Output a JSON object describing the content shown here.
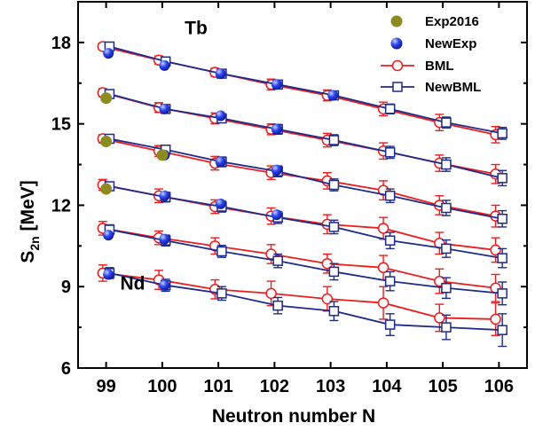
{
  "chart_data": {
    "type": "line",
    "title": "",
    "xlabel": "Neutron number N",
    "ylabel_main": "S",
    "ylabel_sub": "2n",
    "ylabel_unit": " [MeV]",
    "x": [
      99,
      100,
      101,
      102,
      103,
      104,
      105,
      106
    ],
    "xlim": [
      98.5,
      106.5
    ],
    "ylim": [
      6,
      19.5
    ],
    "yticks": [
      6,
      9,
      12,
      15,
      18
    ],
    "legend_position": "top-right",
    "annotations": [
      {
        "text": "Tb",
        "x": 100.4,
        "y": 18.3
      },
      {
        "text": "Nd",
        "x": 99.25,
        "y": 8.9
      }
    ],
    "series": [
      {
        "name": "Exp2016",
        "color": "#8b8b22",
        "marker": "circle-filled",
        "points": [
          [
            99,
            15.95
          ],
          [
            99,
            14.35
          ],
          [
            99,
            12.6
          ],
          [
            100,
            13.85
          ]
        ]
      },
      {
        "name": "NewExp",
        "color": "#1a2fe0",
        "marker": "sphere",
        "points": [
          [
            99,
            17.6
          ],
          [
            100,
            17.15
          ],
          [
            101,
            16.85
          ],
          [
            102,
            16.45
          ],
          [
            103,
            16.05
          ],
          [
            100,
            15.55
          ],
          [
            101,
            15.3
          ],
          [
            102,
            14.8
          ],
          [
            100,
            13.85
          ],
          [
            101,
            13.6
          ],
          [
            102,
            13.3
          ],
          [
            100,
            12.35
          ],
          [
            101,
            12.05
          ],
          [
            102,
            11.65
          ],
          [
            99,
            10.9
          ],
          [
            100,
            10.75
          ],
          [
            99,
            9.45
          ],
          [
            100,
            9.05
          ]
        ]
      },
      {
        "name": "BML",
        "color": "#ee1c1c",
        "marker": "circle-open",
        "curves": [
          [
            17.85,
            17.35,
            16.9,
            16.45,
            16.05,
            15.55,
            15.05,
            14.6
          ],
          [
            16.15,
            15.6,
            15.2,
            14.8,
            14.4,
            14.0,
            13.55,
            13.15
          ],
          [
            14.45,
            14.0,
            13.55,
            13.2,
            12.9,
            12.55,
            12.0,
            11.6
          ],
          [
            12.75,
            12.35,
            11.95,
            11.6,
            11.3,
            11.15,
            10.6,
            10.35
          ],
          [
            11.15,
            10.8,
            10.5,
            10.2,
            9.85,
            9.7,
            9.2,
            8.95
          ],
          [
            9.5,
            9.25,
            8.9,
            8.75,
            8.55,
            8.4,
            7.85,
            7.8
          ]
        ],
        "errors": [
          [
            0.12,
            0.15,
            0.15,
            0.2,
            0.2,
            0.25,
            0.3,
            0.3
          ],
          [
            0.15,
            0.18,
            0.2,
            0.2,
            0.25,
            0.3,
            0.3,
            0.35
          ],
          [
            0.15,
            0.2,
            0.25,
            0.25,
            0.3,
            0.35,
            0.35,
            0.4
          ],
          [
            0.2,
            0.25,
            0.25,
            0.3,
            0.35,
            0.4,
            0.4,
            0.45
          ],
          [
            0.25,
            0.25,
            0.3,
            0.35,
            0.35,
            0.45,
            0.45,
            0.5
          ],
          [
            0.3,
            0.35,
            0.35,
            0.45,
            0.45,
            0.6,
            0.5,
            0.6
          ]
        ]
      },
      {
        "name": "NewBML",
        "color": "#1c2a8c",
        "marker": "square-open",
        "curves": [
          [
            17.85,
            17.3,
            16.85,
            16.45,
            16.05,
            15.55,
            15.05,
            14.65
          ],
          [
            16.1,
            15.55,
            15.2,
            14.8,
            14.4,
            13.95,
            13.5,
            13.0
          ],
          [
            14.45,
            14.05,
            13.6,
            13.25,
            12.75,
            12.35,
            11.9,
            11.5
          ],
          [
            12.7,
            12.3,
            11.95,
            11.55,
            11.2,
            10.7,
            10.4,
            10.05
          ],
          [
            11.1,
            10.7,
            10.3,
            9.95,
            9.55,
            9.2,
            8.95,
            8.75
          ],
          [
            9.5,
            9.05,
            8.75,
            8.3,
            8.1,
            7.6,
            7.5,
            7.4
          ]
        ],
        "errors": [
          [
            0.1,
            0.12,
            0.12,
            0.15,
            0.15,
            0.18,
            0.2,
            0.22
          ],
          [
            0.12,
            0.15,
            0.15,
            0.18,
            0.2,
            0.22,
            0.25,
            0.28
          ],
          [
            0.15,
            0.15,
            0.18,
            0.2,
            0.22,
            0.25,
            0.28,
            0.3
          ],
          [
            0.15,
            0.18,
            0.2,
            0.22,
            0.25,
            0.3,
            0.32,
            0.35
          ],
          [
            0.18,
            0.2,
            0.22,
            0.25,
            0.3,
            0.35,
            0.38,
            0.42
          ],
          [
            0.2,
            0.22,
            0.25,
            0.3,
            0.35,
            0.4,
            0.45,
            0.6
          ]
        ]
      }
    ]
  }
}
